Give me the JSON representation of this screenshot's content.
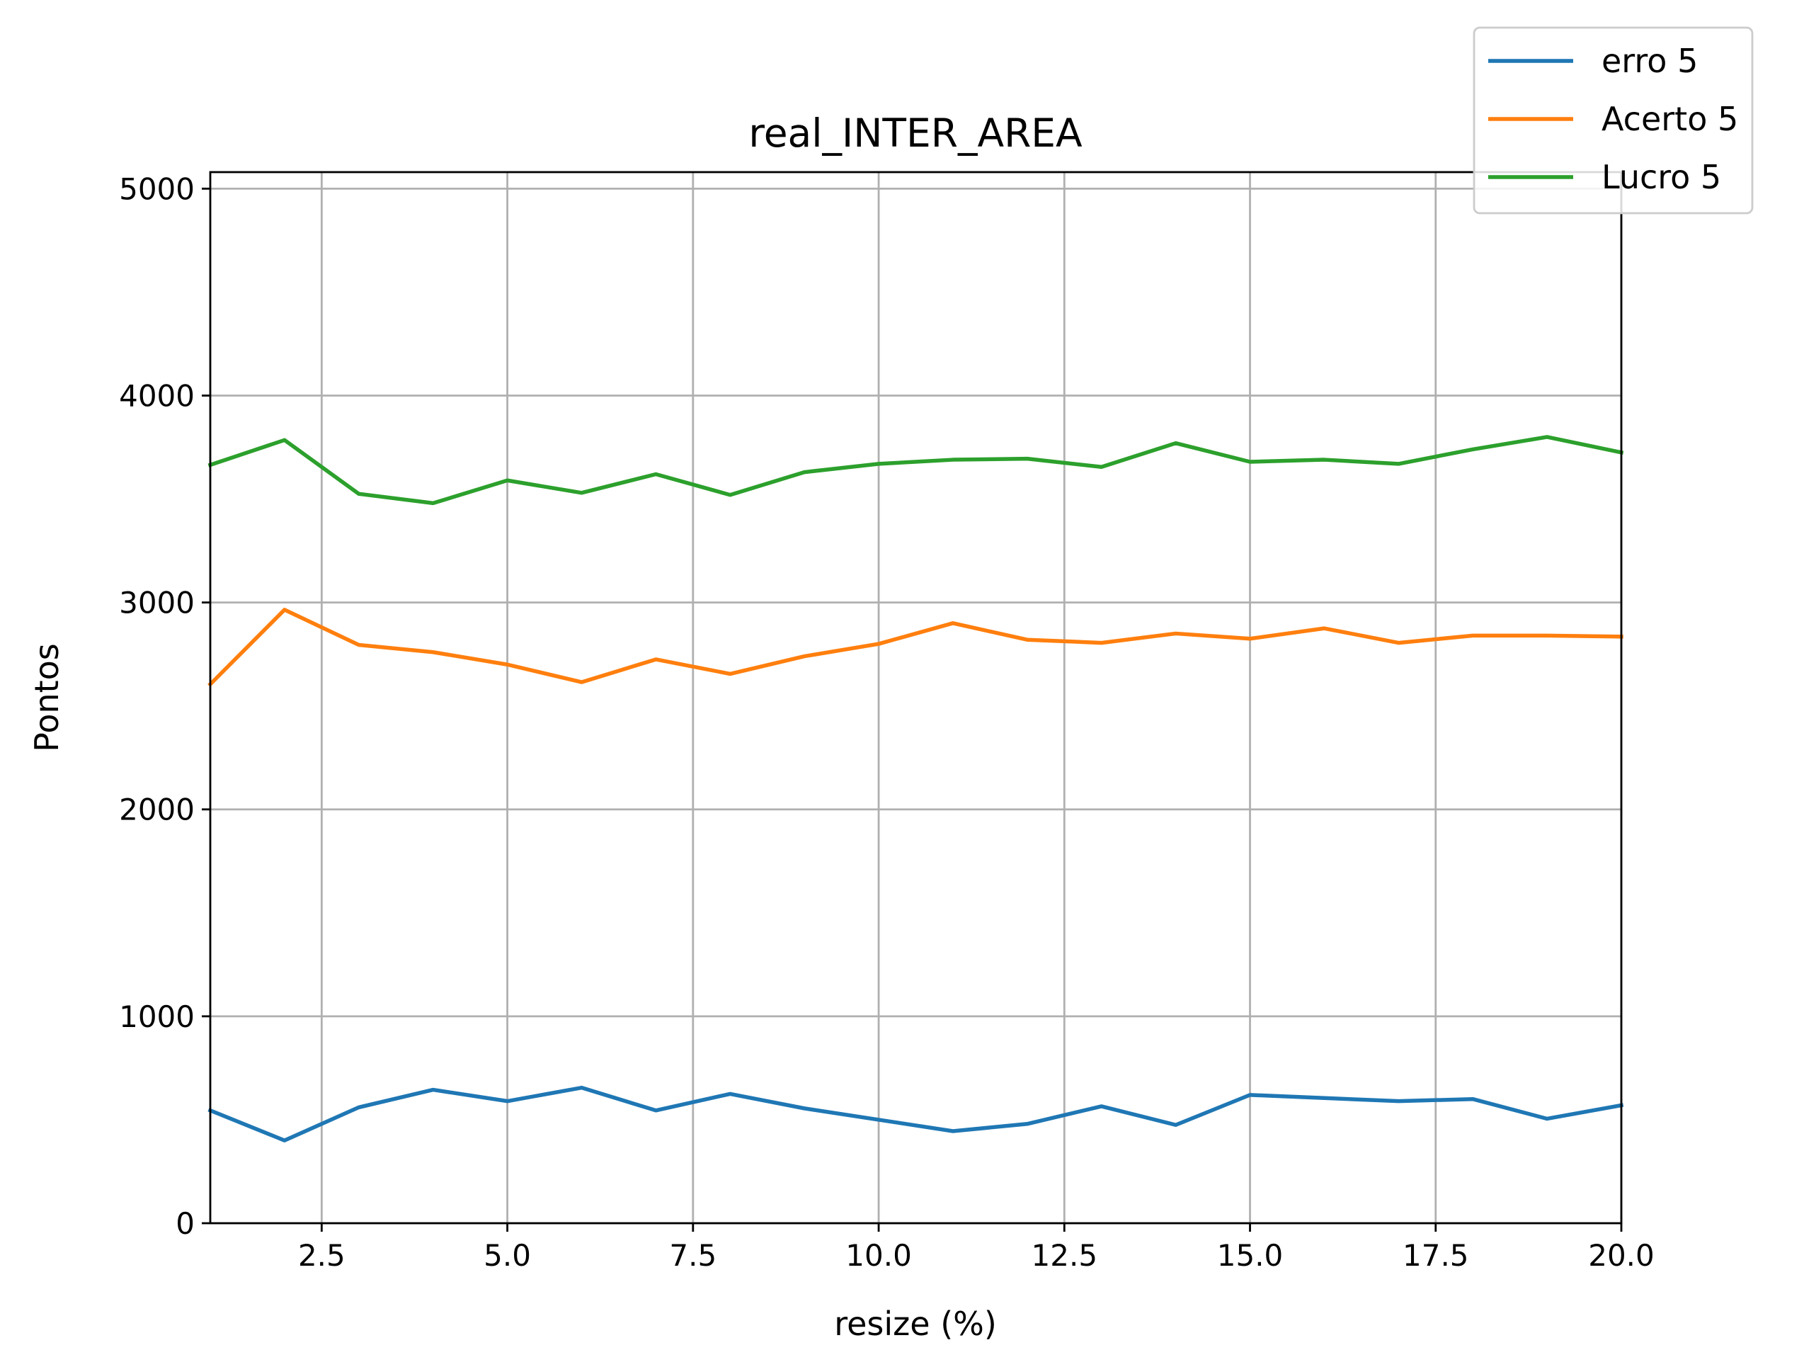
{
  "chart_data": {
    "type": "line",
    "title": "real_INTER_AREA",
    "xlabel": "resize (%)",
    "ylabel": "Pontos",
    "xlim": [
      1,
      20
    ],
    "ylim": [
      0,
      5080
    ],
    "x_ticks": [
      2.5,
      5.0,
      7.5,
      10.0,
      12.5,
      15.0,
      17.5,
      20.0
    ],
    "x_tick_labels": [
      "2.5",
      "5.0",
      "7.5",
      "10.0",
      "12.5",
      "15.0",
      "17.5",
      "20.0"
    ],
    "y_ticks": [
      0,
      1000,
      2000,
      3000,
      4000,
      5000
    ],
    "y_tick_labels": [
      "0",
      "1000",
      "2000",
      "3000",
      "4000",
      "5000"
    ],
    "grid": true,
    "legend_position": "top-right",
    "x": [
      1,
      2,
      3,
      4,
      5,
      6,
      7,
      8,
      9,
      10,
      11,
      12,
      13,
      14,
      15,
      16,
      17,
      18,
      19,
      20
    ],
    "series": [
      {
        "name": "erro 5",
        "color": "#1f77b4",
        "values": [
          545,
          400,
          560,
          645,
          590,
          655,
          545,
          625,
          555,
          500,
          445,
          480,
          565,
          475,
          620,
          605,
          590,
          600,
          505,
          570
        ]
      },
      {
        "name": "Acerto 5",
        "color": "#ff7f0e",
        "values": [
          2605,
          2965,
          2795,
          2760,
          2700,
          2615,
          2725,
          2655,
          2740,
          2800,
          2900,
          2820,
          2805,
          2850,
          2825,
          2875,
          2805,
          2840,
          2840,
          2835
        ]
      },
      {
        "name": "Lucro 5",
        "color": "#2ca02c",
        "values": [
          3665,
          3785,
          3525,
          3480,
          3590,
          3530,
          3620,
          3520,
          3630,
          3670,
          3690,
          3695,
          3655,
          3770,
          3680,
          3690,
          3670,
          3740,
          3800,
          3725
        ]
      }
    ]
  }
}
